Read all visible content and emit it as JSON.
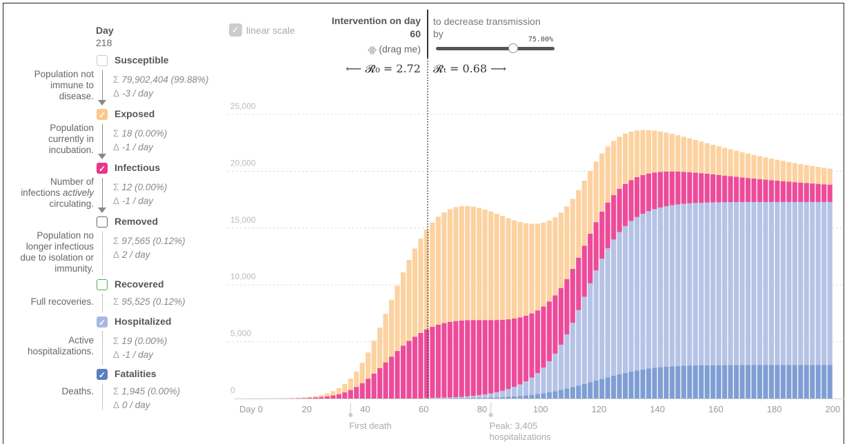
{
  "sidebar": {
    "day_label": "Day",
    "day_value": "218",
    "categories": [
      {
        "key": "susceptible",
        "name": "Susceptible",
        "checked": false,
        "color": "#c8c8c8",
        "desc": [
          "Population not",
          "immune to",
          "disease."
        ],
        "desc_html": "",
        "sum": "79,902,404 (99.88%)",
        "delta": "-3 / day",
        "arrow": "solid"
      },
      {
        "key": "exposed",
        "name": "Exposed",
        "checked": true,
        "color": "#fbc98a",
        "desc": [
          "Population",
          "currently in",
          "incubation."
        ],
        "sum": "18 (0.00%)",
        "delta": "-1 / day",
        "arrow": "solid"
      },
      {
        "key": "infectious",
        "name": "Infectious",
        "checked": true,
        "color": "#e8378a",
        "desc": [
          "Number of",
          "infections",
          "circulating."
        ],
        "desc_em": "actively",
        "sum": "12 (0.00%)",
        "delta": "-1 / day",
        "arrow": "solid"
      },
      {
        "key": "removed",
        "name": "Removed",
        "checked": false,
        "color": "#666666",
        "desc": [
          "Population no",
          "longer infectious",
          "due to isolation or",
          "immunity."
        ],
        "sum": "97,565 (0.12%)",
        "delta": "2 / day",
        "arrow": "dotted"
      },
      {
        "key": "recovered",
        "name": "Recovered",
        "checked": false,
        "color": "#4cae4c",
        "desc": [
          "Full recoveries."
        ],
        "sum": "95,525 (0.12%)",
        "delta": "",
        "arrow": "dotted"
      },
      {
        "key": "hospitalized",
        "name": "Hospitalized",
        "checked": true,
        "color": "#a7b8e0",
        "desc": [
          "Active",
          "hospitalizations."
        ],
        "sum": "19 (0.00%)",
        "delta": "-1 / day",
        "arrow": "dotted"
      },
      {
        "key": "fatalities",
        "name": "Fatalities",
        "checked": true,
        "color": "#5a7fc0",
        "desc": [
          "Deaths."
        ],
        "sum": "1,945 (0.00%)",
        "delta": "0 / day",
        "arrow": "dotted"
      }
    ]
  },
  "controls": {
    "linear_scale_label": "linear scale",
    "intervention_title": "Intervention on day",
    "intervention_day": "60",
    "drag_label": "(drag me)",
    "decrease_text_1": "to decrease transmission",
    "decrease_text_2": "by",
    "slider_value_label": "75.00%",
    "slider_fraction": 0.75,
    "r0_text": "⟵ 𝓡₀ = 2.72",
    "rt_text": "𝓡ₜ = 0.68 ⟶"
  },
  "chart_data": {
    "type": "bar",
    "stacked": true,
    "x_start": 1,
    "x_step": 2,
    "xlim": [
      0,
      201
    ],
    "ylim": [
      0,
      25000
    ],
    "x_ticks": [
      0,
      20,
      40,
      60,
      80,
      100,
      120,
      140,
      160,
      180,
      200
    ],
    "x_tick_labels": [
      "Day 0",
      "20",
      "40",
      "60",
      "80",
      "100",
      "120",
      "140",
      "160",
      "180",
      "200"
    ],
    "y_ticks": [
      0,
      5000,
      10000,
      15000,
      20000,
      25000
    ],
    "y_tick_labels": [
      "0",
      "5,000",
      "10,000",
      "15,000",
      "20,000",
      "25,000"
    ],
    "grid": true,
    "intervention_x": 60,
    "annotations": [
      {
        "x": 35,
        "text": "First death",
        "lines": [
          "First death"
        ]
      },
      {
        "x": 83,
        "text": "Peak: 3,405 hospitalizations",
        "lines": [
          "Peak: 3,405",
          "hospitalizations"
        ]
      }
    ],
    "series": [
      {
        "key": "fatalities",
        "color": "#7f9ed4",
        "values": [
          0,
          0,
          0,
          0,
          0,
          0,
          0,
          0,
          0,
          0,
          0,
          0,
          0,
          0,
          0,
          0,
          0,
          0,
          0,
          0,
          0,
          0,
          0,
          0,
          0,
          0,
          0,
          0,
          0,
          0,
          12,
          15,
          18,
          21,
          25,
          30,
          36,
          44,
          53,
          64,
          77,
          93,
          111,
          133,
          160,
          192,
          230,
          275,
          329,
          393,
          467,
          552,
          649,
          757,
          876,
          1004,
          1140,
          1282,
          1428,
          1576,
          1723,
          1867,
          2006,
          2138,
          2260,
          2372,
          2472,
          2560,
          2636,
          2701,
          2755,
          2799,
          2835,
          2864,
          2886,
          2903,
          2915,
          2924,
          2930,
          2934,
          2937,
          2939,
          2940,
          2941,
          2942,
          2942,
          2943,
          2943,
          2943,
          2943,
          2943,
          2943,
          2943,
          2943,
          2943,
          2943,
          2943,
          2943,
          2943,
          2943
        ]
      },
      {
        "key": "hospitalized",
        "color": "#b5c3e6",
        "values": [
          0,
          0,
          0,
          0,
          0,
          0,
          0,
          0,
          0,
          0,
          0,
          0,
          0,
          0,
          0,
          0,
          0,
          0,
          0,
          0,
          0,
          0,
          0,
          0,
          0,
          0,
          0,
          0,
          0,
          0,
          26,
          34,
          44,
          56,
          71,
          91,
          115,
          145,
          182,
          228,
          285,
          355,
          441,
          545,
          672,
          826,
          1013,
          1240,
          1515,
          1847,
          2247,
          2727,
          3301,
          3979,
          4767,
          5661,
          6641,
          7672,
          8707,
          9691,
          10581,
          11350,
          11990,
          12509,
          12922,
          13247,
          13500,
          13696,
          13848,
          13965,
          14055,
          14124,
          14177,
          14218,
          14250,
          14274,
          14293,
          14307,
          14318,
          14326,
          14332,
          14337,
          14341,
          14344,
          14346,
          14348,
          14349,
          14350,
          14351,
          14351,
          14352,
          14352,
          14352,
          14352,
          14353,
          14353,
          14353,
          14353,
          14353,
          14353
        ]
      },
      {
        "key": "infectious",
        "color": "#ed4b9a",
        "values": [
          1,
          2,
          3,
          4,
          6,
          9,
          13,
          19,
          28,
          41,
          60,
          88,
          128,
          186,
          268,
          383,
          541,
          751,
          1020,
          1352,
          1745,
          2190,
          2674,
          3179,
          3688,
          4182,
          4646,
          5068,
          5443,
          5766,
          6038,
          6260,
          6433,
          6561,
          6648,
          6698,
          6715,
          6704,
          6669,
          6614,
          6542,
          6456,
          6359,
          6253,
          6140,
          6021,
          5898,
          5772,
          5644,
          5514,
          5384,
          5254,
          5124,
          4995,
          4867,
          4741,
          4616,
          4494,
          4374,
          4256,
          4141,
          4028,
          3918,
          3811,
          3707,
          3605,
          3507,
          3411,
          3318,
          3228,
          3140,
          3055,
          2973,
          2893,
          2816,
          2742,
          2670,
          2600,
          2533,
          2467,
          2404,
          2343,
          2284,
          2227,
          2171,
          2118,
          2066,
          2016,
          1967,
          1920,
          1875,
          1831,
          1788,
          1747,
          1707,
          1668,
          1631,
          1595,
          1560,
          1527
        ]
      },
      {
        "key": "exposed",
        "color": "#fcd2a0",
        "values": [
          1,
          2,
          3,
          5,
          8,
          12,
          18,
          27,
          40,
          59,
          86,
          126,
          183,
          264,
          376,
          530,
          737,
          1009,
          1357,
          1790,
          2306,
          2901,
          3562,
          4270,
          5004,
          5741,
          6457,
          7133,
          7753,
          8306,
          8784,
          9183,
          9503,
          9746,
          9916,
          10019,
          10059,
          10043,
          9977,
          9868,
          9723,
          9548,
          9348,
          9129,
          8895,
          8651,
          8399,
          8143,
          7886,
          7629,
          7374,
          7122,
          6875,
          6633,
          6397,
          6167,
          5944,
          5728,
          5519,
          5318,
          5124,
          4937,
          4757,
          4584,
          4418,
          4259,
          4106,
          3959,
          3818,
          3683,
          3554,
          3430,
          3311,
          3197,
          3088,
          2983,
          2883,
          2787,
          2695,
          2607,
          2522,
          2441,
          2363,
          2288,
          2216,
          2147,
          2080,
          2016,
          1955,
          1896,
          1839,
          1784,
          1731,
          1680,
          1631,
          1584,
          1539,
          1495,
          1453,
          1412
        ]
      }
    ]
  }
}
